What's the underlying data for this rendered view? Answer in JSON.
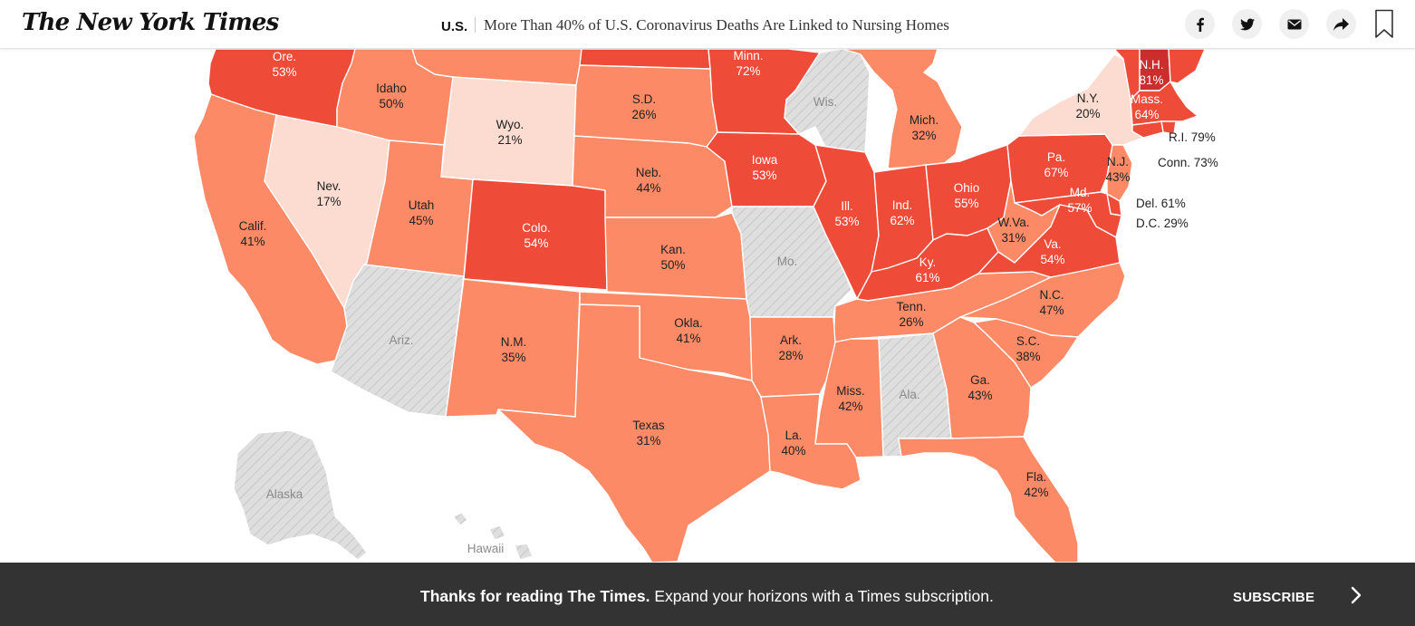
{
  "header": {
    "logo": "The New York Times",
    "section": "U.S.",
    "headline": "More Than 40% of U.S. Coronavirus Deaths Are Linked to Nursing Homes",
    "share_icons": [
      "facebook-icon",
      "twitter-icon",
      "email-icon",
      "share-icon",
      "bookmark-icon"
    ]
  },
  "colors": {
    "tier1": "#fcdcd1",
    "tier2": "#fc8a66",
    "tier3": "#ee4b39",
    "tier4": "#cc2d2d",
    "no_data": "#dedede"
  },
  "map": {
    "states": {
      "ore": {
        "name": "Ore.",
        "value": "53%"
      },
      "idaho": {
        "name": "Idaho",
        "value": "50%"
      },
      "wyo": {
        "name": "Wyo.",
        "value": "21%"
      },
      "sd": {
        "name": "S.D.",
        "value": "26%"
      },
      "minn": {
        "name": "Minn.",
        "value": "72%"
      },
      "wis": {
        "name": "Wis.",
        "value": ""
      },
      "mich": {
        "name": "Mich.",
        "value": "32%"
      },
      "ny": {
        "name": "N.Y.",
        "value": "20%"
      },
      "nh": {
        "name": "N.H.",
        "value": "81%"
      },
      "mass": {
        "name": "Mass.",
        "value": "64%"
      },
      "nev": {
        "name": "Nev.",
        "value": "17%"
      },
      "utah": {
        "name": "Utah",
        "value": "45%"
      },
      "calif": {
        "name": "Calif.",
        "value": "41%"
      },
      "colo": {
        "name": "Colo.",
        "value": "54%"
      },
      "neb": {
        "name": "Neb.",
        "value": "44%"
      },
      "iowa": {
        "name": "Iowa",
        "value": "53%"
      },
      "ill": {
        "name": "Ill.",
        "value": "53%"
      },
      "ind": {
        "name": "Ind.",
        "value": "62%"
      },
      "ohio": {
        "name": "Ohio",
        "value": "55%"
      },
      "pa": {
        "name": "Pa.",
        "value": "67%"
      },
      "nj": {
        "name": "N.J.",
        "value": "43%"
      },
      "md": {
        "name": "Md.",
        "value": "57%"
      },
      "wva": {
        "name": "W.Va.",
        "value": "31%"
      },
      "va": {
        "name": "Va.",
        "value": "54%"
      },
      "kan": {
        "name": "Kan.",
        "value": "50%"
      },
      "mo": {
        "name": "Mo.",
        "value": ""
      },
      "ky": {
        "name": "Ky.",
        "value": "61%"
      },
      "ariz": {
        "name": "Ariz.",
        "value": ""
      },
      "nm": {
        "name": "N.M.",
        "value": "35%"
      },
      "okla": {
        "name": "Okla.",
        "value": "41%"
      },
      "ark": {
        "name": "Ark.",
        "value": "28%"
      },
      "tenn": {
        "name": "Tenn.",
        "value": "26%"
      },
      "nc": {
        "name": "N.C.",
        "value": "47%"
      },
      "sc": {
        "name": "S.C.",
        "value": "38%"
      },
      "ga": {
        "name": "Ga.",
        "value": "43%"
      },
      "ala": {
        "name": "Ala.",
        "value": ""
      },
      "miss": {
        "name": "Miss.",
        "value": "42%"
      },
      "texas": {
        "name": "Texas",
        "value": "31%"
      },
      "la": {
        "name": "La.",
        "value": "40%"
      },
      "fla": {
        "name": "Fla.",
        "value": "42%"
      },
      "alaska": {
        "name": "Alaska",
        "value": ""
      },
      "hawaii": {
        "name": "Hawaii",
        "value": ""
      }
    },
    "side_labels": {
      "ri": "R.I. 79%",
      "conn": "Conn. 73%",
      "del": "Del. 61%",
      "dc": "D.C. 29%"
    }
  },
  "footer": {
    "bold_text": "Thanks for reading The Times.",
    "text": " Expand your horizons with a Times subscription.",
    "subscribe_label": "SUBSCRIBE"
  }
}
